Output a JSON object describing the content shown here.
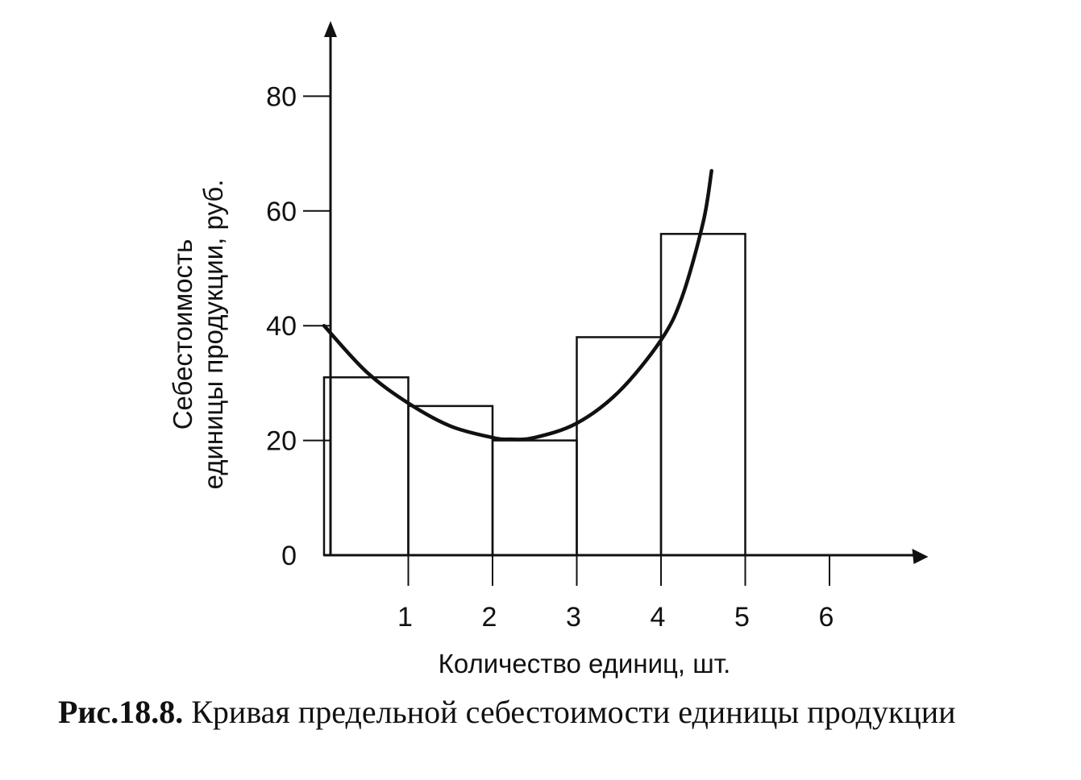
{
  "chart_data": {
    "type": "bar",
    "bars": [
      {
        "x0": 0,
        "x1": 1,
        "value": 31
      },
      {
        "x0": 1,
        "x1": 2,
        "value": 26
      },
      {
        "x0": 2,
        "x1": 3,
        "value": 20
      },
      {
        "x0": 3,
        "x1": 4,
        "value": 38
      },
      {
        "x0": 4,
        "x1": 5,
        "value": 56
      }
    ],
    "curve": {
      "type": "line",
      "points": [
        [
          0,
          40
        ],
        [
          0.5,
          32
        ],
        [
          1,
          26.5
        ],
        [
          1.5,
          22.5
        ],
        [
          2,
          20.5
        ],
        [
          2.2,
          20.2
        ],
        [
          2.5,
          20.5
        ],
        [
          3,
          23
        ],
        [
          3.5,
          28.5
        ],
        [
          4,
          37.5
        ],
        [
          4.25,
          45
        ],
        [
          4.5,
          58
        ],
        [
          4.6,
          67
        ]
      ]
    },
    "xlabel": "Количество единиц, шт.",
    "ylabel_line1": "Себестоимость",
    "ylabel_line2": "единицы продукции, руб.",
    "x_ticks": [
      1,
      2,
      3,
      4,
      5,
      6
    ],
    "y_ticks": [
      0,
      20,
      40,
      60,
      80
    ],
    "xlim": [
      0,
      7
    ],
    "ylim": [
      0,
      80
    ],
    "grid": false
  },
  "caption": {
    "number": "Рис.18.8.",
    "text": " Кривая предельной себестоимости единицы продукции"
  }
}
